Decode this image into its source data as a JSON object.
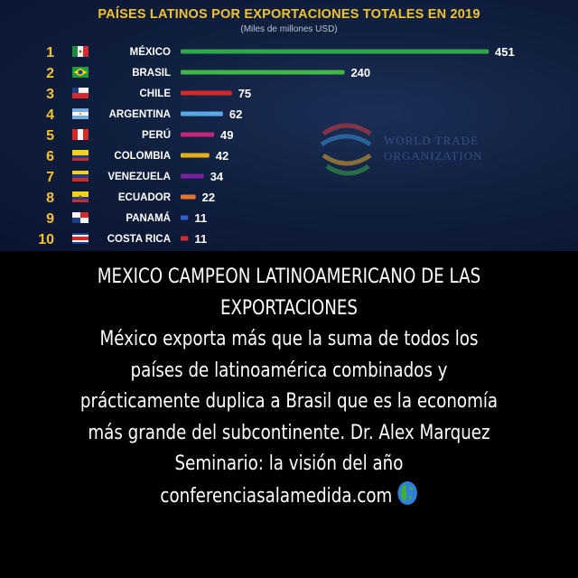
{
  "chart_data": {
    "type": "bar",
    "orientation": "horizontal",
    "title": "PAÍSES LATINOS POR EXPORTACIONES TOTALES EN 2019",
    "subtitle": "(Miles de millones USD)",
    "ranks": [
      "1",
      "2",
      "3",
      "4",
      "5",
      "6",
      "7",
      "8",
      "9",
      "10"
    ],
    "categories": [
      "MÉXICO",
      "BRASIL",
      "CHILE",
      "ARGENTINA",
      "PERÚ",
      "COLOMBIA",
      "VENEZUELA",
      "ECUADOR",
      "PANAMÁ",
      "COSTA RICA"
    ],
    "values": [
      451,
      240,
      75,
      62,
      49,
      42,
      34,
      22,
      11,
      11
    ],
    "value_labels": [
      "451",
      "240",
      "75",
      "62",
      "49",
      "42",
      "34",
      "22",
      "11",
      "11"
    ],
    "colors": [
      "#2fa84a",
      "#43b546",
      "#d42a2a",
      "#5aa9e8",
      "#c0287a",
      "#e3b01c",
      "#7a1fa2",
      "#e8752a",
      "#2f5fd6",
      "#d42a2a"
    ],
    "xlim": [
      0,
      451
    ],
    "grid": false,
    "legend": "none"
  },
  "watermark": {
    "line1": "WORLD TRADE",
    "line2": "ORGANIZATION"
  },
  "caption": {
    "lines": [
      "MEXICO CAMPEON LATINOAMERICANO DE LAS",
      "EXPORTACIONES",
      "México exporta más que la suma de todos los",
      "países de latinoamérica combinados y",
      "prácticamente duplica a Brasil que es la economía",
      "más grande del subcontinente. Dr. Alex Marquez",
      "Seminario: la visión del año",
      "conferenciasalamedida.com"
    ],
    "trailing_icon": "globe-americas-icon"
  }
}
